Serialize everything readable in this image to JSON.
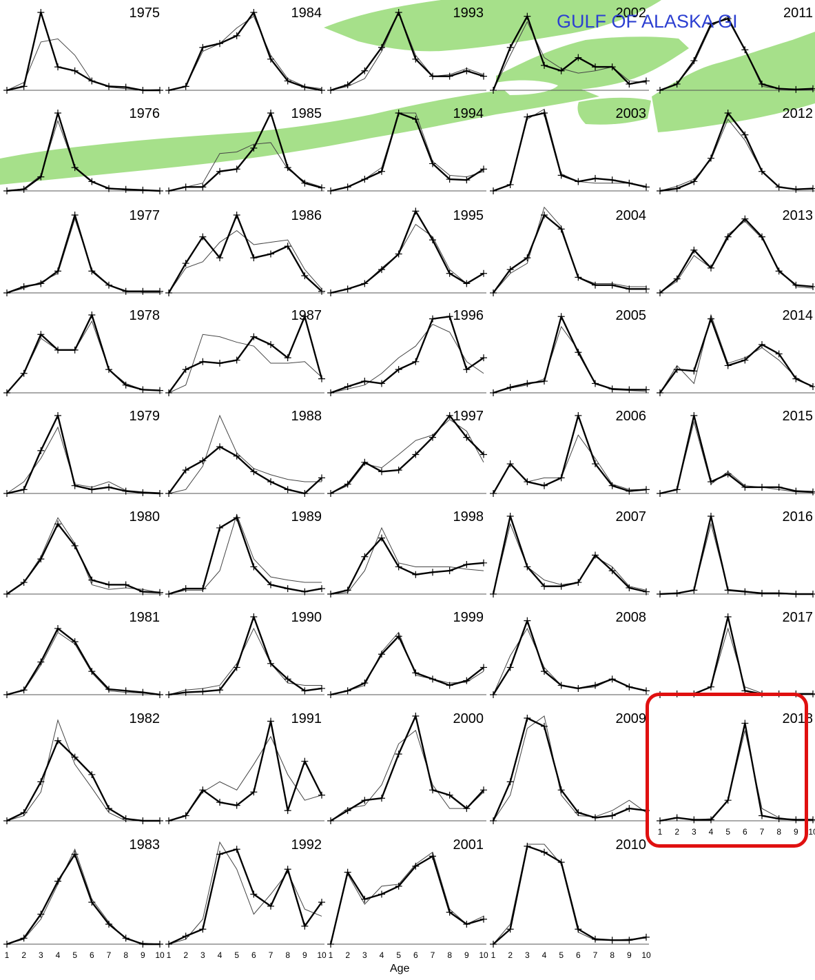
{
  "overlay": {
    "title": "GULF OF ALASKA GI"
  },
  "x_axis_label": "Age",
  "x_ticks": [
    "1",
    "2",
    "3",
    "4",
    "5",
    "6",
    "7",
    "8",
    "9",
    "10"
  ],
  "colors": {
    "land": "#a6e08a",
    "highlight": "#e01010",
    "title": "#2c3fd1",
    "observed": "#000000",
    "predicted": "#444444"
  },
  "highlight_year": "2018",
  "chart_data": {
    "type": "line",
    "title": "",
    "xlabel": "Age",
    "ylabel": "",
    "grid": false,
    "xlim": [
      1,
      10
    ],
    "panels": [
      {
        "year": "1975",
        "obs": [
          0,
          0.05,
          1.0,
          0.3,
          0.25,
          0.12,
          0.05,
          0.04,
          0,
          0
        ],
        "pred": [
          0,
          0.1,
          0.62,
          0.66,
          0.45,
          0.12,
          0.04,
          0.02,
          0,
          0.01
        ]
      },
      {
        "year": "1976",
        "obs": [
          0,
          0.02,
          0.18,
          1.0,
          0.3,
          0.12,
          0.03,
          0.02,
          0.01,
          0
        ],
        "pred": [
          0,
          0.03,
          0.2,
          0.9,
          0.3,
          0.11,
          0.04,
          0.01,
          0,
          0
        ]
      },
      {
        "year": "1977",
        "obs": [
          0,
          0.08,
          0.12,
          0.28,
          1.0,
          0.28,
          0.1,
          0.02,
          0.02,
          0.02
        ],
        "pred": [
          0,
          0.06,
          0.14,
          0.25,
          0.95,
          0.3,
          0.1,
          0.03,
          0.01,
          0.01
        ]
      },
      {
        "year": "1978",
        "obs": [
          0,
          0.25,
          0.75,
          0.55,
          0.55,
          1.0,
          0.3,
          0.1,
          0.04,
          0.03
        ],
        "pred": [
          0,
          0.25,
          0.7,
          0.55,
          0.55,
          0.92,
          0.3,
          0.12,
          0.04,
          0.03
        ]
      },
      {
        "year": "1979",
        "obs": [
          0,
          0.05,
          0.55,
          1.0,
          0.1,
          0.05,
          0.08,
          0.03,
          0.01,
          0
        ],
        "pred": [
          0,
          0.15,
          0.45,
          0.85,
          0.12,
          0.08,
          0.15,
          0.04,
          0.02,
          0.01
        ]
      },
      {
        "year": "1980",
        "obs": [
          0,
          0.15,
          0.45,
          0.9,
          0.62,
          0.18,
          0.12,
          0.12,
          0.03,
          0.02
        ],
        "pred": [
          0,
          0.15,
          0.48,
          0.98,
          0.65,
          0.12,
          0.06,
          0.08,
          0.06,
          0.02
        ]
      },
      {
        "year": "1981",
        "obs": [
          0,
          0.06,
          0.42,
          0.85,
          0.68,
          0.3,
          0.07,
          0.05,
          0.03,
          0
        ],
        "pred": [
          0,
          0.05,
          0.38,
          0.8,
          0.65,
          0.28,
          0.05,
          0.03,
          0.02,
          0
        ]
      },
      {
        "year": "1982",
        "obs": [
          0,
          0.08,
          0.38,
          0.78,
          0.62,
          0.45,
          0.12,
          0.02,
          0,
          0
        ],
        "pred": [
          0,
          0.05,
          0.28,
          0.98,
          0.55,
          0.32,
          0.08,
          0,
          0,
          0
        ]
      },
      {
        "year": "1983",
        "obs": [
          0,
          0.06,
          0.3,
          0.63,
          0.9,
          0.42,
          0.2,
          0.06,
          0,
          0
        ],
        "pred": [
          0,
          0.05,
          0.25,
          0.6,
          0.95,
          0.45,
          0.22,
          0.05,
          0.01,
          0
        ]
      },
      {
        "year": "1984",
        "obs": [
          0,
          0.05,
          0.55,
          0.6,
          0.7,
          1.0,
          0.4,
          0.12,
          0.04,
          0
        ],
        "pred": [
          0,
          0.05,
          0.5,
          0.6,
          0.8,
          0.95,
          0.45,
          0.15,
          0.05,
          0.02
        ]
      },
      {
        "year": "1985",
        "obs": [
          0,
          0.05,
          0.05,
          0.25,
          0.28,
          0.55,
          1.0,
          0.3,
          0.1,
          0.04
        ],
        "pred": [
          0,
          0.05,
          0.1,
          0.48,
          0.5,
          0.6,
          0.62,
          0.28,
          0.12,
          0.05
        ]
      },
      {
        "year": "1986",
        "obs": [
          0,
          0.38,
          0.72,
          0.45,
          1.0,
          0.45,
          0.5,
          0.6,
          0.22,
          0.02
        ],
        "pred": [
          0,
          0.32,
          0.4,
          0.65,
          0.8,
          0.62,
          0.65,
          0.68,
          0.3,
          0.05
        ]
      },
      {
        "year": "1987",
        "obs": [
          0,
          0.3,
          0.4,
          0.38,
          0.42,
          0.72,
          0.62,
          0.45,
          0.98,
          0.18
        ],
        "pred": [
          0,
          0.1,
          0.75,
          0.72,
          0.65,
          0.6,
          0.38,
          0.38,
          0.4,
          0.2
        ]
      },
      {
        "year": "1988",
        "obs": [
          0,
          0.3,
          0.42,
          0.6,
          0.48,
          0.28,
          0.15,
          0.05,
          0,
          0.2
        ],
        "pred": [
          0,
          0.05,
          0.35,
          1.0,
          0.52,
          0.32,
          0.24,
          0.18,
          0.15,
          0.15
        ]
      },
      {
        "year": "1989",
        "obs": [
          0,
          0.07,
          0.07,
          0.85,
          0.98,
          0.35,
          0.12,
          0.07,
          0.03,
          0.07
        ],
        "pred": [
          0,
          0.05,
          0.05,
          0.3,
          1.02,
          0.45,
          0.22,
          0.18,
          0.15,
          0.15
        ]
      },
      {
        "year": "1990",
        "obs": [
          0,
          0.03,
          0.04,
          0.06,
          0.35,
          1.0,
          0.4,
          0.2,
          0.05,
          0.08
        ],
        "pred": [
          0,
          0.06,
          0.08,
          0.12,
          0.4,
          0.85,
          0.4,
          0.15,
          0.12,
          0.12
        ]
      },
      {
        "year": "1991",
        "obs": [
          0,
          0.05,
          0.3,
          0.18,
          0.15,
          0.28,
          0.97,
          0.1,
          0.58,
          0.25
        ],
        "pred": [
          0,
          0.05,
          0.28,
          0.38,
          0.3,
          0.55,
          0.82,
          0.45,
          0.2,
          0.25
        ]
      },
      {
        "year": "1992",
        "obs": [
          0,
          0.08,
          0.15,
          0.9,
          0.95,
          0.5,
          0.38,
          0.75,
          0.18,
          0.42
        ],
        "pred": [
          0,
          0.05,
          0.25,
          1.02,
          0.75,
          0.3,
          0.5,
          0.72,
          0.35,
          0.28
        ]
      },
      {
        "year": "1993",
        "obs": [
          0,
          0.07,
          0.25,
          0.55,
          1.0,
          0.4,
          0.18,
          0.18,
          0.25,
          0.18
        ],
        "pred": [
          0,
          0.05,
          0.15,
          0.5,
          1.0,
          0.45,
          0.18,
          0.2,
          0.28,
          0.2
        ]
      },
      {
        "year": "1994",
        "obs": [
          0,
          0.05,
          0.15,
          0.25,
          1.0,
          0.92,
          0.35,
          0.15,
          0.14,
          0.28
        ],
        "pred": [
          0,
          0.05,
          0.15,
          0.3,
          1.0,
          1.0,
          0.38,
          0.2,
          0.18,
          0.25
        ]
      },
      {
        "year": "1995",
        "obs": [
          0,
          0.05,
          0.12,
          0.3,
          0.5,
          1.05,
          0.68,
          0.25,
          0.12,
          0.25
        ],
        "pred": [
          0,
          0.05,
          0.12,
          0.32,
          0.5,
          0.88,
          0.72,
          0.3,
          0.12,
          0.25
        ]
      },
      {
        "year": "1996",
        "obs": [
          0,
          0.08,
          0.15,
          0.12,
          0.3,
          0.4,
          0.95,
          0.98,
          0.3,
          0.45
        ],
        "pred": [
          0,
          0.05,
          0.1,
          0.25,
          0.45,
          0.6,
          0.88,
          0.78,
          0.4,
          0.25
        ]
      },
      {
        "year": "1997",
        "obs": [
          0,
          0.12,
          0.4,
          0.28,
          0.3,
          0.5,
          0.72,
          1.0,
          0.72,
          0.5
        ],
        "pred": [
          0,
          0.1,
          0.38,
          0.33,
          0.5,
          0.68,
          0.75,
          0.95,
          0.8,
          0.4
        ]
      },
      {
        "year": "1998",
        "obs": [
          0,
          0.05,
          0.48,
          0.72,
          0.35,
          0.25,
          0.28,
          0.3,
          0.38,
          0.4
        ],
        "pred": [
          0,
          0.02,
          0.3,
          0.85,
          0.4,
          0.35,
          0.35,
          0.35,
          0.32,
          0.3
        ]
      },
      {
        "year": "1999",
        "obs": [
          0,
          0.05,
          0.15,
          0.52,
          0.75,
          0.28,
          0.2,
          0.12,
          0.18,
          0.35
        ],
        "pred": [
          0,
          0.05,
          0.12,
          0.55,
          0.8,
          0.25,
          0.2,
          0.15,
          0.16,
          0.3
        ]
      },
      {
        "year": "2000",
        "obs": [
          0,
          0.1,
          0.2,
          0.22,
          0.65,
          1.02,
          0.3,
          0.25,
          0.12,
          0.3
        ],
        "pred": [
          0,
          0.12,
          0.15,
          0.35,
          0.75,
          0.88,
          0.35,
          0.12,
          0.12,
          0.28
        ]
      },
      {
        "year": "2001",
        "obs": [
          0,
          0.72,
          0.45,
          0.5,
          0.58,
          0.78,
          0.88,
          0.32,
          0.2,
          0.25
        ],
        "pred": [
          0,
          0.7,
          0.4,
          0.58,
          0.6,
          0.8,
          0.92,
          0.35,
          0.2,
          0.28
        ]
      },
      {
        "year": "2002",
        "obs": [
          0,
          0.55,
          0.95,
          0.32,
          0.25,
          0.42,
          0.3,
          0.3,
          0.08,
          0.12
        ],
        "pred": [
          0,
          0.45,
          0.88,
          0.42,
          0.28,
          0.22,
          0.25,
          0.3,
          0.12,
          0.1
        ]
      },
      {
        "year": "2003",
        "obs": [
          0,
          0.08,
          0.95,
          1.0,
          0.2,
          0.12,
          0.16,
          0.14,
          0.1,
          0.05
        ],
        "pred": [
          0,
          0.08,
          0.92,
          1.05,
          0.22,
          0.12,
          0.1,
          0.1,
          0.1,
          0.06
        ]
      },
      {
        "year": "2004",
        "obs": [
          0,
          0.3,
          0.45,
          1.0,
          0.82,
          0.2,
          0.1,
          0.1,
          0.05,
          0.05
        ],
        "pred": [
          0,
          0.25,
          0.38,
          1.1,
          0.85,
          0.2,
          0.12,
          0.12,
          0.08,
          0.08
        ]
      },
      {
        "year": "2005",
        "obs": [
          0,
          0.07,
          0.12,
          0.15,
          0.98,
          0.52,
          0.12,
          0.05,
          0.04,
          0.04
        ],
        "pred": [
          0,
          0.06,
          0.1,
          0.18,
          0.85,
          0.55,
          0.12,
          0.04,
          0.03,
          0.02
        ]
      },
      {
        "year": "2006",
        "obs": [
          0,
          0.38,
          0.15,
          0.1,
          0.2,
          1.0,
          0.38,
          0.1,
          0.03,
          0.05
        ],
        "pred": [
          0,
          0.38,
          0.15,
          0.2,
          0.2,
          0.75,
          0.45,
          0.12,
          0.05,
          0.05
        ]
      },
      {
        "year": "2007",
        "obs": [
          0,
          1.0,
          0.35,
          0.1,
          0.1,
          0.15,
          0.5,
          0.3,
          0.08,
          0.03
        ],
        "pred": [
          0,
          0.9,
          0.35,
          0.18,
          0.12,
          0.15,
          0.48,
          0.35,
          0.1,
          0.05
        ]
      },
      {
        "year": "2008",
        "obs": [
          0,
          0.35,
          0.95,
          0.3,
          0.12,
          0.08,
          0.12,
          0.2,
          0.1,
          0.05
        ],
        "pred": [
          0,
          0.5,
          0.85,
          0.35,
          0.12,
          0.08,
          0.1,
          0.2,
          0.1,
          0.05
        ]
      },
      {
        "year": "2009",
        "obs": [
          0,
          0.38,
          1.0,
          0.92,
          0.3,
          0.08,
          0.03,
          0.05,
          0.12,
          0.1
        ],
        "pred": [
          0,
          0.25,
          0.9,
          1.02,
          0.25,
          0.05,
          0.04,
          0.1,
          0.2,
          0.08
        ]
      },
      {
        "year": "2010",
        "obs": [
          0,
          0.15,
          0.98,
          0.92,
          0.82,
          0.15,
          0.05,
          0.04,
          0.04,
          0.07
        ],
        "pred": [
          0,
          0.2,
          1.0,
          1.0,
          0.8,
          0.12,
          0.04,
          0.04,
          0.05,
          0.06
        ]
      },
      {
        "year": "2011",
        "obs": [
          0,
          0.08,
          0.38,
          0.85,
          0.92,
          0.52,
          0.08,
          0.02,
          0.01,
          0.02
        ],
        "pred": [
          0,
          0.08,
          0.35,
          0.82,
          0.95,
          0.52,
          0.05,
          0.02,
          0.01,
          0.01
        ]
      },
      {
        "year": "2012",
        "obs": [
          0,
          0.03,
          0.12,
          0.42,
          1.0,
          0.72,
          0.25,
          0.05,
          0.02,
          0.03
        ],
        "pred": [
          0,
          0.06,
          0.15,
          0.4,
          0.92,
          0.65,
          0.25,
          0.05,
          0.02,
          0.02
        ]
      },
      {
        "year": "2013",
        "obs": [
          0,
          0.18,
          0.55,
          0.32,
          0.72,
          0.95,
          0.72,
          0.28,
          0.1,
          0.08
        ],
        "pred": [
          0,
          0.15,
          0.48,
          0.32,
          0.75,
          0.92,
          0.7,
          0.3,
          0.08,
          0.06
        ]
      },
      {
        "year": "2014",
        "obs": [
          0,
          0.3,
          0.28,
          0.95,
          0.35,
          0.42,
          0.62,
          0.5,
          0.18,
          0.08
        ],
        "pred": [
          0,
          0.35,
          0.12,
          1.0,
          0.38,
          0.45,
          0.58,
          0.42,
          0.2,
          0.07
        ]
      },
      {
        "year": "2015",
        "obs": [
          0,
          0.05,
          1.0,
          0.15,
          0.25,
          0.08,
          0.08,
          0.08,
          0.03,
          0.02
        ],
        "pred": [
          0,
          0.05,
          0.92,
          0.12,
          0.28,
          0.1,
          0.08,
          0.05,
          0.02,
          0.01
        ]
      },
      {
        "year": "2016",
        "obs": [
          0,
          0.01,
          0.05,
          1.0,
          0.05,
          0.03,
          0.01,
          0.01,
          0,
          0
        ],
        "pred": [
          0,
          0.01,
          0.05,
          0.9,
          0.06,
          0.04,
          0.01,
          0,
          0,
          0
        ]
      },
      {
        "year": "2017",
        "obs": [
          0,
          0.01,
          0.01,
          0.1,
          1.0,
          0.05,
          0.01,
          0.01,
          0.01,
          0.01
        ],
        "pred": [
          0,
          0.02,
          0.02,
          0.1,
          0.85,
          0.1,
          0.02,
          0.01,
          0.01,
          0.01
        ]
      },
      {
        "year": "2018",
        "obs": [
          0,
          0.03,
          0.01,
          0.01,
          0.2,
          0.95,
          0.05,
          0.02,
          0.01,
          0.01
        ],
        "pred": [
          0,
          0.03,
          0.01,
          0.02,
          0.2,
          0.88,
          0.12,
          0.03,
          0.01,
          0.01
        ]
      }
    ],
    "layout_order": [
      [
        "1975",
        "1984",
        "1993",
        "2002",
        "2011"
      ],
      [
        "1976",
        "1985",
        "1994",
        "2003",
        "2012"
      ],
      [
        "1977",
        "1986",
        "1995",
        "2004",
        "2013"
      ],
      [
        "1978",
        "1987",
        "1996",
        "2005",
        "2014"
      ],
      [
        "1979",
        "1988",
        "1997",
        "2006",
        "2015"
      ],
      [
        "1980",
        "1989",
        "1998",
        "2007",
        "2016"
      ],
      [
        "1981",
        "1990",
        "1999",
        "2008",
        "2017"
      ],
      [
        "1982",
        "1991",
        "2000",
        "2009",
        "2018"
      ],
      [
        "1983",
        "1992",
        "2001",
        "2010",
        ""
      ]
    ]
  }
}
